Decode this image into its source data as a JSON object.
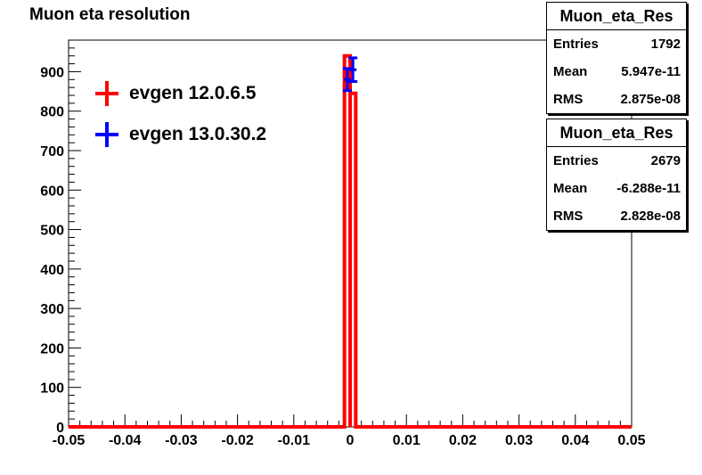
{
  "chart_data": {
    "type": "histogram",
    "title": "Muon eta resolution",
    "xlim": [
      -0.05,
      0.05
    ],
    "ylim": [
      0,
      980
    ],
    "x_ticks": [
      "-0.05",
      "-0.04",
      "-0.03",
      "-0.02",
      "-0.01",
      "0",
      "0.01",
      "0.02",
      "0.03",
      "0.04",
      "0.05"
    ],
    "x_tick_values": [
      -0.05,
      -0.04,
      -0.03,
      -0.02,
      -0.01,
      0,
      0.01,
      0.02,
      0.03,
      0.04,
      0.05
    ],
    "y_ticks": [
      "0",
      "100",
      "200",
      "300",
      "400",
      "500",
      "600",
      "700",
      "800",
      "900"
    ],
    "y_tick_values": [
      0,
      100,
      200,
      300,
      400,
      500,
      600,
      700,
      800,
      900
    ],
    "series": [
      {
        "name": "evgen 12.0.6.5",
        "color": "#ff0000",
        "style": "histogram",
        "bins": [
          {
            "x0": -0.001,
            "x1": 0.0,
            "value": 940
          },
          {
            "x0": 0.0,
            "x1": 0.001,
            "value": 845
          }
        ]
      },
      {
        "name": "evgen 13.0.30.2",
        "color": "#0000ff",
        "style": "errorbars",
        "points": [
          {
            "x": -0.0005,
            "y": 880,
            "err": 28
          },
          {
            "x": 0.0005,
            "y": 905,
            "err": 30
          }
        ]
      }
    ],
    "legend_position": "top-left"
  },
  "statboxes": [
    {
      "title": "Muon_eta_Res",
      "rows": [
        {
          "label": "Entries",
          "value": "1792"
        },
        {
          "label": "Mean",
          "value": "5.947e-11"
        },
        {
          "label": "RMS",
          "value": "2.875e-08"
        }
      ]
    },
    {
      "title": "Muon_eta_Res",
      "rows": [
        {
          "label": "Entries",
          "value": "2679"
        },
        {
          "label": "Mean",
          "value": "-6.288e-11"
        },
        {
          "label": "RMS",
          "value": "2.828e-08"
        }
      ]
    }
  ]
}
